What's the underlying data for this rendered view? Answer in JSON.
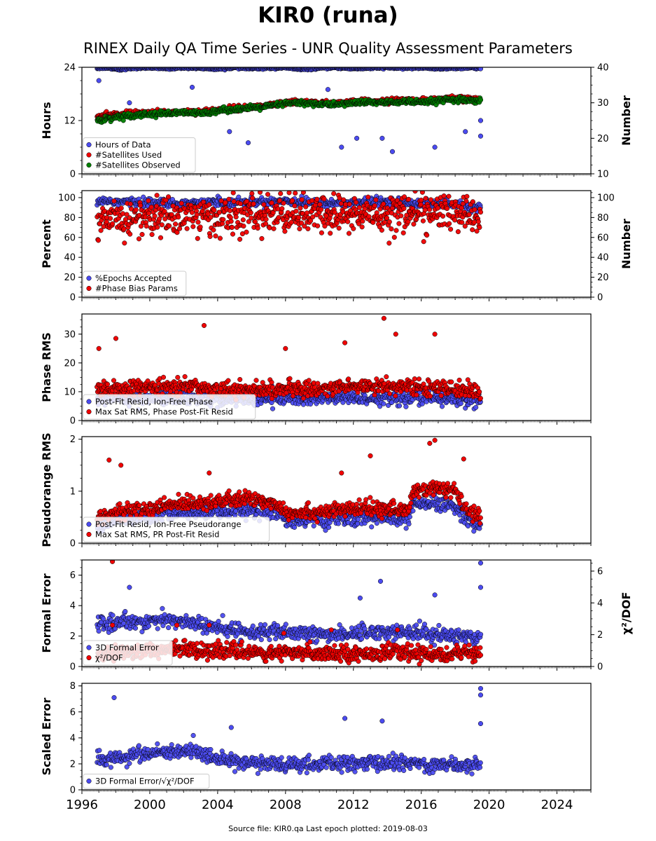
{
  "header": {
    "title": "KIR0 (runa)",
    "subtitle": "RINEX Daily QA Time Series - UNR Quality Assessment Parameters"
  },
  "footer": {
    "source_text": "Source file: KIR0.qa Last epoch plotted: 2019-08-03"
  },
  "colors": {
    "blue": "#4b4bf0",
    "red": "#f00000",
    "green": "#008000",
    "marker_edge": "#000000"
  },
  "chart_data": [
    {
      "type": "scatter",
      "panel": "hours",
      "ylabel": "Hours",
      "y2label": "Number",
      "ylim": [
        0,
        24
      ],
      "yticks": [
        0,
        12,
        24
      ],
      "y2lim": [
        10,
        40
      ],
      "y2ticks": [
        10,
        20,
        30,
        40
      ],
      "legend_position": "bottom-left",
      "series": [
        {
          "name": "Hours of Data",
          "color": "blue",
          "axis": "left",
          "x": [
            1996.9,
            1997.5,
            1998.2,
            1999.0,
            2000.0,
            2001.0,
            2002.0,
            2003.0,
            2004.0,
            2005.0,
            2006.0,
            2007.0,
            2008.0,
            2009.0,
            2010.0,
            2011.0,
            2012.0,
            2013.0,
            2014.0,
            2015.0,
            2016.0,
            2017.0,
            2018.0,
            2019.0,
            2019.5
          ],
          "y": [
            23.8,
            23.9,
            23.5,
            23.8,
            23.9,
            23.7,
            23.9,
            23.8,
            23.6,
            23.9,
            23.7,
            23.8,
            23.9,
            23.5,
            23.8,
            23.9,
            23.7,
            23.8,
            23.9,
            23.8,
            23.9,
            23.7,
            23.8,
            23.9,
            23.8
          ],
          "outliers": [
            [
              1997.0,
              21.0
            ],
            [
              1998.8,
              16.0
            ],
            [
              2002.5,
              19.5
            ],
            [
              2004.7,
              9.5
            ],
            [
              2005.8,
              7.0
            ],
            [
              2010.5,
              19.0
            ],
            [
              2011.3,
              6.0
            ],
            [
              2012.2,
              8.0
            ],
            [
              2013.7,
              8.0
            ],
            [
              2014.3,
              5.0
            ],
            [
              2016.8,
              6.0
            ],
            [
              2018.6,
              9.5
            ],
            [
              2019.5,
              8.5
            ],
            [
              2019.5,
              12.0
            ]
          ]
        },
        {
          "name": "#Satellites Used",
          "color": "red",
          "axis": "right",
          "x": [
            1996.9,
            1998.0,
            1999.0,
            2000.0,
            2001.0,
            2002.0,
            2003.0,
            2004.0,
            2005.0,
            2006.0,
            2007.0,
            2008.0,
            2009.0,
            2010.0,
            2011.0,
            2012.0,
            2013.0,
            2014.0,
            2015.0,
            2016.0,
            2017.0,
            2018.0,
            2019.0,
            2019.5
          ],
          "y": [
            26.0,
            26.8,
            27.0,
            27.2,
            27.3,
            27.5,
            27.5,
            28.0,
            28.5,
            28.8,
            29.2,
            30.0,
            30.2,
            30.0,
            29.8,
            30.2,
            30.4,
            30.5,
            30.8,
            30.6,
            31.0,
            31.2,
            31.0,
            30.8
          ]
        },
        {
          "name": "#Satellites Observed",
          "color": "green",
          "axis": "right",
          "x": [
            1996.9,
            1998.0,
            1999.0,
            2000.0,
            2001.0,
            2002.0,
            2003.0,
            2004.0,
            2005.0,
            2006.0,
            2007.0,
            2008.0,
            2009.0,
            2010.0,
            2011.0,
            2012.0,
            2013.0,
            2014.0,
            2015.0,
            2016.0,
            2017.0,
            2018.0,
            2019.0,
            2019.5
          ],
          "y": [
            25.0,
            26.0,
            26.5,
            26.8,
            27.0,
            27.2,
            27.0,
            27.8,
            28.2,
            28.5,
            29.0,
            29.8,
            30.0,
            29.6,
            29.5,
            30.0,
            30.2,
            30.0,
            30.4,
            30.0,
            30.6,
            30.8,
            30.5,
            30.2
          ]
        }
      ]
    },
    {
      "type": "scatter",
      "panel": "percent",
      "ylabel": "Percent",
      "y2label": "Number",
      "ylim": [
        0,
        107
      ],
      "yticks": [
        0,
        20,
        40,
        60,
        80,
        100
      ],
      "y2lim": [
        0,
        107
      ],
      "y2ticks": [
        0,
        20,
        40,
        60,
        80,
        100
      ],
      "legend_position": "bottom-left",
      "series": [
        {
          "name": "%Epochs Accepted",
          "color": "blue",
          "axis": "left",
          "x": [
            1996.9,
            1998.0,
            2000.0,
            2002.0,
            2004.0,
            2006.0,
            2008.0,
            2010.0,
            2012.0,
            2014.0,
            2016.0,
            2018.0,
            2019.5
          ],
          "y": [
            97,
            96,
            95,
            94,
            96,
            95,
            97,
            94,
            95,
            96,
            94,
            93,
            90
          ]
        },
        {
          "name": "#Phase Bias Params",
          "color": "red",
          "axis": "right",
          "x": [
            1996.9,
            1998.0,
            2000.0,
            2002.0,
            2004.0,
            2006.0,
            2008.0,
            2010.0,
            2012.0,
            2014.0,
            2016.0,
            2018.0,
            2019.5
          ],
          "y": [
            72,
            78,
            80,
            82,
            80,
            82,
            84,
            82,
            83,
            84,
            85,
            86,
            80
          ]
        }
      ]
    },
    {
      "type": "scatter",
      "panel": "phase-rms",
      "ylabel": "Phase RMS",
      "ylim": [
        0,
        37
      ],
      "yticks": [
        0,
        10,
        20,
        30
      ],
      "legend_position": "bottom-left",
      "series": [
        {
          "name": "Post-Fit Resid, Ion-Free Phase",
          "color": "blue",
          "x": [
            1996.9,
            1998.0,
            2000.0,
            2002.0,
            2004.0,
            2006.0,
            2008.0,
            2010.0,
            2012.0,
            2014.0,
            2016.0,
            2018.0,
            2019.5
          ],
          "y": [
            7.5,
            7.8,
            8.0,
            8.2,
            7.8,
            7.5,
            7.8,
            7.6,
            7.8,
            7.9,
            7.8,
            7.5,
            7.0
          ]
        },
        {
          "name": "Max Sat RMS, Phase Post-Fit Resid",
          "color": "red",
          "x": [
            1996.9,
            1998.0,
            2000.0,
            2002.0,
            2004.0,
            2006.0,
            2008.0,
            2010.0,
            2012.0,
            2014.0,
            2016.0,
            2018.0,
            2019.5
          ],
          "y": [
            10,
            11,
            11.5,
            12,
            11,
            10.5,
            11,
            11,
            12,
            12,
            11.5,
            11,
            10
          ],
          "outliers": [
            [
              1997.0,
              25
            ],
            [
              1998.0,
              28.5
            ],
            [
              2003.2,
              33
            ],
            [
              2013.8,
              35.5
            ],
            [
              2014.5,
              30
            ],
            [
              2016.8,
              30
            ],
            [
              2011.5,
              27
            ],
            [
              2008.0,
              25
            ]
          ]
        }
      ]
    },
    {
      "type": "scatter",
      "panel": "pseudorange-rms",
      "ylabel": "Pseudorange RMS",
      "ylim": [
        0,
        2.05
      ],
      "yticks": [
        0,
        1,
        2
      ],
      "legend_position": "bottom-left",
      "series": [
        {
          "name": "Post-Fit Resid, Ion-Free Pseudorange",
          "color": "blue",
          "x": [
            1996.9,
            1998.0,
            2000.0,
            2002.0,
            2004.0,
            2006.0,
            2007.6,
            2008.0,
            2010.0,
            2012.0,
            2014.0,
            2015.2,
            2015.5,
            2016.5,
            2018.0,
            2018.6,
            2019.5
          ],
          "y": [
            0.3,
            0.45,
            0.5,
            0.6,
            0.62,
            0.65,
            0.55,
            0.45,
            0.45,
            0.48,
            0.5,
            0.45,
            0.72,
            0.75,
            0.72,
            0.5,
            0.35
          ]
        },
        {
          "name": "Max Sat RMS, PR Post-Fit Resid",
          "color": "red",
          "x": [
            1996.9,
            1998.0,
            2000.0,
            2002.0,
            2004.0,
            2006.0,
            2007.6,
            2008.0,
            2010.0,
            2012.0,
            2014.0,
            2015.2,
            2015.5,
            2016.5,
            2018.0,
            2018.6,
            2019.5
          ],
          "y": [
            0.45,
            0.6,
            0.65,
            0.78,
            0.8,
            0.85,
            0.75,
            0.6,
            0.6,
            0.65,
            0.68,
            0.6,
            1.0,
            1.05,
            1.0,
            0.65,
            0.5
          ],
          "outliers": [
            [
              1997.6,
              1.6
            ],
            [
              1998.3,
              1.5
            ],
            [
              2003.5,
              1.35
            ],
            [
              2013.0,
              1.68
            ],
            [
              2016.5,
              1.92
            ],
            [
              2016.8,
              1.98
            ],
            [
              2018.5,
              1.62
            ],
            [
              2011.3,
              1.35
            ]
          ]
        }
      ]
    },
    {
      "type": "scatter",
      "panel": "formal-error",
      "ylabel": "Formal Error",
      "y2label": "χ²/DOF",
      "ylim": [
        0,
        7
      ],
      "yticks": [
        0,
        2,
        4,
        6
      ],
      "y2lim": [
        0,
        6.7
      ],
      "y2ticks": [
        0,
        2,
        4,
        6
      ],
      "legend_position": "bottom-left",
      "series": [
        {
          "name": "3D Formal Error",
          "color": "blue",
          "axis": "left",
          "x": [
            1996.9,
            1998.0,
            2000.0,
            2002.0,
            2004.0,
            2006.0,
            2008.0,
            2010.0,
            2012.0,
            2014.0,
            2016.0,
            2018.0,
            2019.5
          ],
          "y": [
            2.8,
            2.9,
            3.0,
            3.0,
            2.5,
            2.3,
            2.2,
            2.1,
            2.2,
            2.3,
            2.2,
            2.0,
            2.0
          ],
          "outliers": [
            [
              1998.8,
              5.2
            ],
            [
              2012.4,
              4.5
            ],
            [
              2013.6,
              5.6
            ],
            [
              2016.8,
              4.7
            ],
            [
              2019.5,
              6.8
            ],
            [
              2019.5,
              5.2
            ]
          ]
        },
        {
          "name": "χ²/DOF",
          "color": "red",
          "axis": "right",
          "x": [
            1996.9,
            1998.0,
            2000.0,
            2002.0,
            2004.0,
            2006.0,
            2008.0,
            2010.0,
            2012.0,
            2014.0,
            2016.0,
            2018.0,
            2019.5
          ],
          "y": [
            0.8,
            0.9,
            1.0,
            1.1,
            1.0,
            0.9,
            0.8,
            0.9,
            0.8,
            0.9,
            0.8,
            0.8,
            0.8
          ],
          "outliers": [
            [
              1997.8,
              6.6
            ],
            [
              1997.8,
              2.6
            ],
            [
              2001.6,
              2.6
            ],
            [
              2003.5,
              2.6
            ],
            [
              2007.9,
              2.1
            ],
            [
              2010.7,
              2.3
            ],
            [
              2014.6,
              2.3
            ]
          ]
        }
      ]
    },
    {
      "type": "scatter",
      "panel": "scaled-error",
      "ylabel": "Scaled Error",
      "ylim": [
        0,
        8.2
      ],
      "yticks": [
        0,
        2,
        4,
        6,
        8
      ],
      "legend_position": "bottom-left",
      "xlim": [
        1996,
        2026
      ],
      "xticks": [
        1996,
        2000,
        2004,
        2008,
        2012,
        2016,
        2020,
        2024
      ],
      "series": [
        {
          "name": "3D Formal Error/√χ²/DOF",
          "color": "blue",
          "x": [
            1996.9,
            1998.0,
            2000.0,
            2002.0,
            2003.0,
            2004.0,
            2006.0,
            2008.0,
            2010.0,
            2012.0,
            2014.0,
            2016.0,
            2018.0,
            2019.5
          ],
          "y": [
            2.2,
            2.5,
            2.8,
            2.9,
            3.0,
            2.3,
            2.1,
            1.9,
            2.0,
            2.0,
            2.1,
            2.0,
            1.9,
            2.0
          ],
          "outliers": [
            [
              1997.9,
              7.1
            ],
            [
              2011.5,
              5.5
            ],
            [
              2013.7,
              5.3
            ],
            [
              2019.5,
              7.8
            ],
            [
              2019.5,
              7.3
            ],
            [
              2019.5,
              5.1
            ],
            [
              2004.8,
              4.8
            ]
          ]
        }
      ]
    }
  ],
  "xaxis": {
    "xlim": [
      1996,
      2026
    ],
    "tick_labels": [
      "1996",
      "2000",
      "2004",
      "2008",
      "2012",
      "2016",
      "2020",
      "2024"
    ],
    "tick_values": [
      1996,
      2000,
      2004,
      2008,
      2012,
      2016,
      2020,
      2024
    ]
  },
  "legend_labels": {
    "hours": [
      "Hours of Data",
      "#Satellites Used",
      "#Satellites Observed"
    ],
    "percent": [
      "%Epochs Accepted",
      "#Phase Bias Params"
    ],
    "phase": [
      "Post-Fit Resid, Ion-Free Phase",
      "Max Sat RMS, Phase Post-Fit Resid"
    ],
    "pseudo": [
      "Post-Fit Resid, Ion-Free Pseudorange",
      "Max Sat RMS, PR Post-Fit Resid"
    ],
    "formal": [
      "3D Formal Error",
      "χ²/DOF"
    ],
    "scaled": [
      "3D Formal Error/√χ²/DOF"
    ]
  }
}
